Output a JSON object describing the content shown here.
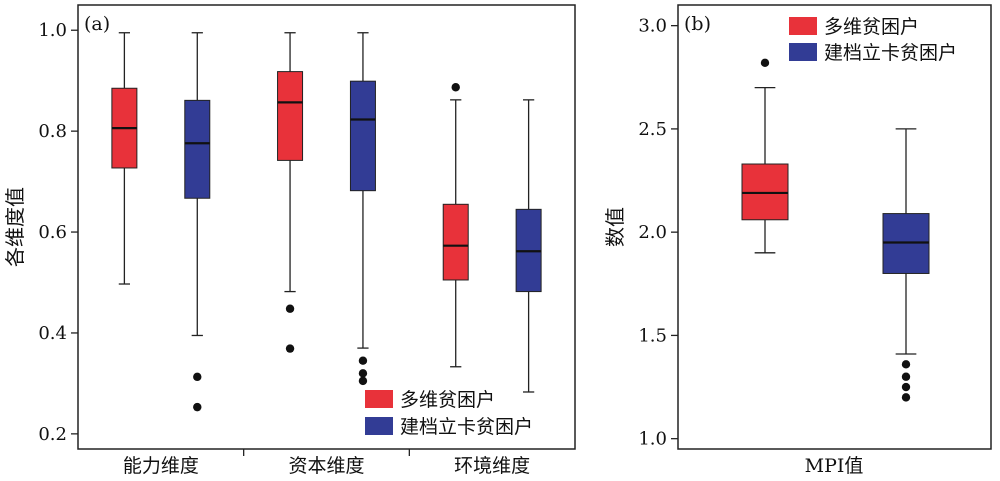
{
  "colors": {
    "multi": "#e8323a",
    "filed": "#323c95"
  },
  "legend": [
    "多维贫困户",
    "建档立卡贫困户"
  ],
  "chart_data": [
    {
      "panel_label": "(a)",
      "type": "box",
      "ylabel": "各维度值",
      "xlabel": "",
      "ylim": [
        0.17,
        1.05
      ],
      "yticks": [
        "0.2",
        "0.4",
        "0.6",
        "0.8",
        "1.0"
      ],
      "categories": [
        "能力维度",
        "资本维度",
        "环境维度"
      ],
      "legend_placement": "bottom-right",
      "series": [
        {
          "name": "多维贫困户",
          "boxes": [
            {
              "min": 0.497,
              "q1": 0.727,
              "median": 0.806,
              "q3": 0.885,
              "max": 0.995,
              "outliers": []
            },
            {
              "min": 0.482,
              "q1": 0.742,
              "median": 0.857,
              "q3": 0.918,
              "max": 0.995,
              "outliers": [
                0.448,
                0.369
              ]
            },
            {
              "min": 0.333,
              "q1": 0.505,
              "median": 0.573,
              "q3": 0.655,
              "max": 0.862,
              "outliers": [
                0.887
              ]
            }
          ]
        },
        {
          "name": "建档立卡贫困户",
          "boxes": [
            {
              "min": 0.395,
              "q1": 0.667,
              "median": 0.776,
              "q3": 0.861,
              "max": 0.995,
              "outliers": [
                0.313,
                0.253
              ]
            },
            {
              "min": 0.37,
              "q1": 0.682,
              "median": 0.823,
              "q3": 0.899,
              "max": 0.995,
              "outliers": [
                0.345,
                0.32,
                0.305
              ]
            },
            {
              "min": 0.283,
              "q1": 0.482,
              "median": 0.562,
              "q3": 0.645,
              "max": 0.862,
              "outliers": []
            }
          ]
        }
      ]
    },
    {
      "panel_label": "(b)",
      "type": "box",
      "ylabel": "数值",
      "xlabel": "MPI值",
      "ylim": [
        0.95,
        3.1
      ],
      "yticks": [
        "1.0",
        "1.5",
        "2.0",
        "2.5",
        "3.0"
      ],
      "legend_placement": "top-right",
      "series": [
        {
          "name": "多维贫困户",
          "boxes": [
            {
              "min": 1.9,
              "q1": 2.06,
              "median": 2.19,
              "q3": 2.33,
              "max": 2.7,
              "outliers": [
                2.82
              ]
            }
          ]
        },
        {
          "name": "建档立卡贫困户",
          "boxes": [
            {
              "min": 1.41,
              "q1": 1.8,
              "median": 1.95,
              "q3": 2.09,
              "max": 2.5,
              "outliers": [
                1.36,
                1.3,
                1.25,
                1.2
              ]
            }
          ]
        }
      ]
    }
  ]
}
